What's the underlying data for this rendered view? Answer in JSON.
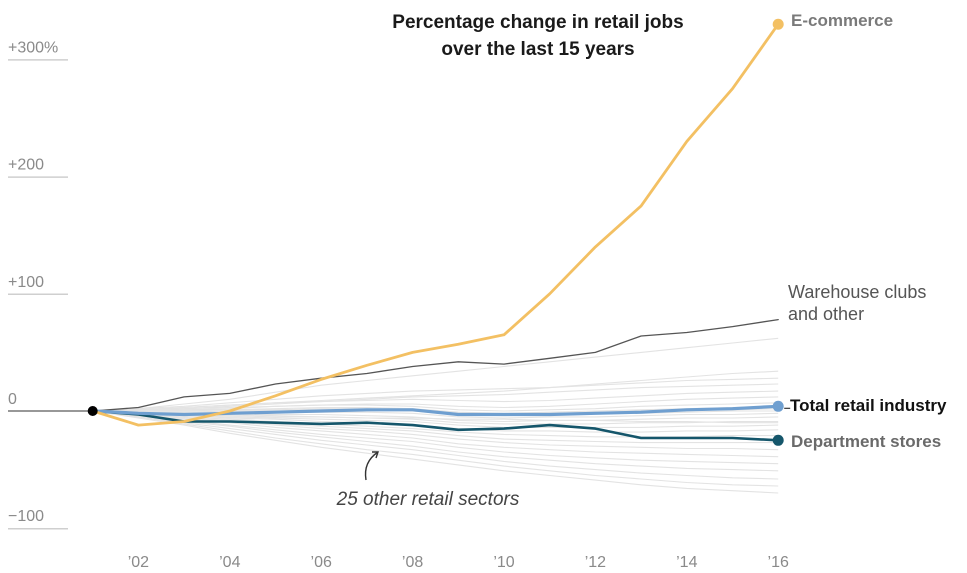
{
  "chart_data": {
    "type": "line",
    "title_lines": [
      "Percentage change in retail jobs",
      "over the last 15 years"
    ],
    "ylabel": "",
    "xlabel": "",
    "x": [
      2001,
      2002,
      2003,
      2004,
      2005,
      2006,
      2007,
      2008,
      2009,
      2010,
      2011,
      2012,
      2013,
      2014,
      2015,
      2016
    ],
    "xlim": [
      2000,
      2016
    ],
    "ylim": [
      -110,
      340
    ],
    "y_ticks": [
      {
        "value": 300,
        "label": "+300%"
      },
      {
        "value": 200,
        "label": "+200"
      },
      {
        "value": 100,
        "label": "+100"
      },
      {
        "value": 0,
        "label": "0"
      },
      {
        "value": -100,
        "label": "−100"
      }
    ],
    "x_ticks": [
      {
        "value": 2002,
        "label": "’02"
      },
      {
        "value": 2004,
        "label": "’04"
      },
      {
        "value": 2006,
        "label": "’06"
      },
      {
        "value": 2008,
        "label": "’08"
      },
      {
        "value": 2010,
        "label": "’10"
      },
      {
        "value": 2012,
        "label": "’12"
      },
      {
        "value": 2014,
        "label": "’14"
      },
      {
        "value": 2016,
        "label": "’16"
      }
    ],
    "series": [
      {
        "name": "E-commerce",
        "color": "#f3c063",
        "values": [
          0,
          -12,
          -9,
          0,
          13,
          27,
          39,
          50,
          57,
          65,
          100,
          140,
          175,
          230,
          275,
          330
        ]
      },
      {
        "name": "Warehouse clubs and other",
        "color": "#555555",
        "values": [
          0,
          3,
          12,
          15,
          23,
          28,
          32,
          38,
          42,
          40,
          45,
          50,
          64,
          67,
          72,
          78
        ]
      },
      {
        "name": "Total retail industry",
        "color": "#6f9fd0",
        "values": [
          0,
          -2,
          -3,
          -2,
          -1,
          0,
          1,
          1,
          -3,
          -3,
          -3,
          -2,
          -1,
          1,
          2,
          4
        ]
      },
      {
        "name": "Department stores",
        "color": "#15566b",
        "values": [
          0,
          -3,
          -9,
          -9,
          -10,
          -11,
          -10,
          -12,
          -16,
          -15,
          -12,
          -15,
          -23,
          -23,
          -23,
          -25
        ]
      }
    ],
    "other_sectors": {
      "label": "25 other retail sectors",
      "color": "#e3e3e3",
      "values": [
        [
          0,
          2,
          6,
          10,
          16,
          22,
          26,
          30,
          34,
          38,
          42,
          46,
          50,
          54,
          58,
          62
        ],
        [
          0,
          1,
          3,
          5,
          7,
          9,
          11,
          13,
          15,
          17,
          20,
          23,
          26,
          29,
          32,
          34
        ],
        [
          0,
          2,
          4,
          7,
          10,
          13,
          15,
          17,
          18,
          19,
          20,
          22,
          24,
          26,
          27,
          28
        ],
        [
          0,
          1,
          2,
          4,
          6,
          8,
          10,
          12,
          13,
          14,
          16,
          18,
          20,
          21,
          22,
          23
        ],
        [
          0,
          1,
          3,
          5,
          7,
          8,
          9,
          10,
          9,
          8,
          9,
          11,
          13,
          15,
          16,
          17
        ],
        [
          0,
          0,
          1,
          2,
          4,
          5,
          6,
          6,
          4,
          3,
          4,
          6,
          8,
          10,
          11,
          12
        ],
        [
          0,
          1,
          2,
          3,
          4,
          5,
          5,
          4,
          1,
          0,
          1,
          2,
          4,
          5,
          6,
          7
        ],
        [
          0,
          0,
          1,
          1,
          2,
          3,
          3,
          2,
          -1,
          -2,
          -1,
          0,
          1,
          2,
          3,
          4
        ],
        [
          0,
          0,
          0,
          1,
          1,
          2,
          2,
          1,
          -2,
          -3,
          -2,
          -1,
          0,
          1,
          1,
          2
        ],
        [
          0,
          -1,
          -1,
          0,
          0,
          1,
          1,
          0,
          -3,
          -4,
          -3,
          -2,
          -2,
          -1,
          0,
          0
        ],
        [
          0,
          -1,
          -2,
          -2,
          -1,
          -1,
          -1,
          -2,
          -5,
          -6,
          -5,
          -5,
          -4,
          -3,
          -3,
          -2
        ],
        [
          0,
          -1,
          -2,
          -3,
          -3,
          -3,
          -4,
          -5,
          -8,
          -9,
          -8,
          -8,
          -7,
          -6,
          -6,
          -5
        ],
        [
          0,
          -2,
          -3,
          -4,
          -5,
          -5,
          -6,
          -7,
          -10,
          -11,
          -11,
          -11,
          -10,
          -10,
          -9,
          -9
        ],
        [
          0,
          -2,
          -4,
          -5,
          -6,
          -7,
          -8,
          -9,
          -12,
          -14,
          -14,
          -14,
          -14,
          -13,
          -13,
          -12
        ],
        [
          0,
          -2,
          -4,
          -6,
          -7,
          -9,
          -10,
          -12,
          -15,
          -17,
          -17,
          -18,
          -18,
          -17,
          -17,
          -16
        ],
        [
          0,
          -3,
          -5,
          -7,
          -9,
          -11,
          -13,
          -15,
          -18,
          -20,
          -21,
          -22,
          -22,
          -22,
          -21,
          -21
        ],
        [
          0,
          -3,
          -6,
          -8,
          -11,
          -13,
          -15,
          -17,
          -21,
          -24,
          -25,
          -26,
          -27,
          -27,
          -27,
          -27
        ],
        [
          0,
          -3,
          -6,
          -9,
          -12,
          -15,
          -17,
          -20,
          -24,
          -27,
          -29,
          -30,
          -31,
          -32,
          -32,
          -33
        ],
        [
          0,
          -4,
          -7,
          -10,
          -14,
          -17,
          -20,
          -23,
          -28,
          -31,
          -33,
          -35,
          -36,
          -37,
          -38,
          -39
        ],
        [
          0,
          -4,
          -8,
          -12,
          -16,
          -20,
          -23,
          -26,
          -31,
          -35,
          -38,
          -40,
          -42,
          -43,
          -44,
          -45
        ],
        [
          0,
          -4,
          -9,
          -13,
          -18,
          -22,
          -26,
          -30,
          -35,
          -39,
          -42,
          -45,
          -47,
          -49,
          -50,
          -51
        ],
        [
          0,
          -5,
          -10,
          -15,
          -20,
          -25,
          -29,
          -33,
          -38,
          -43,
          -47,
          -50,
          -53,
          -55,
          -57,
          -58
        ],
        [
          0,
          -5,
          -11,
          -17,
          -23,
          -28,
          -33,
          -37,
          -42,
          -47,
          -51,
          -55,
          -58,
          -61,
          -63,
          -64
        ],
        [
          0,
          -6,
          -12,
          -19,
          -25,
          -31,
          -36,
          -41,
          -46,
          -51,
          -55,
          -59,
          -63,
          -66,
          -68,
          -70
        ],
        [
          0,
          -1,
          -2,
          -3,
          -4,
          -5,
          -6,
          -6,
          -7,
          -7,
          -8,
          -8,
          -9,
          -9,
          -10,
          -10
        ]
      ]
    },
    "labels": {
      "ecommerce": "E-commerce",
      "warehouse": [
        "Warehouse clubs",
        "and other"
      ],
      "total": "Total retail industry",
      "department": "Department stores"
    },
    "start_marker_year": 2001,
    "grid": false
  }
}
